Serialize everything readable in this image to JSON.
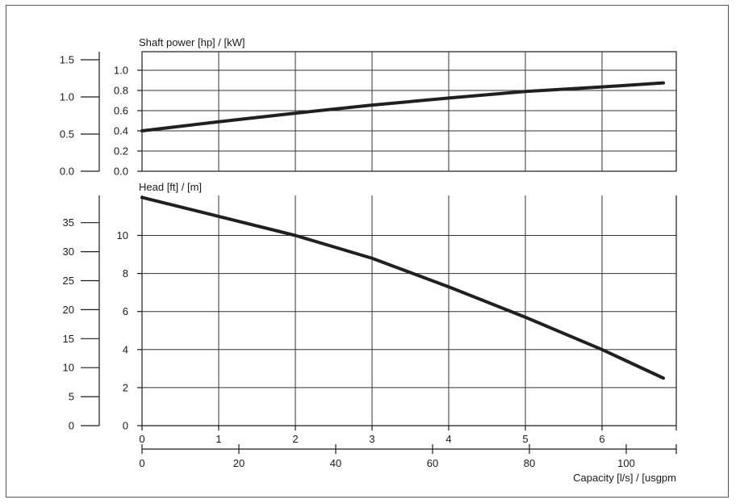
{
  "chart_data": [
    {
      "type": "line",
      "title": "Shaft power [hp] / [kW]",
      "x_primary": {
        "unit_label": "l/s",
        "range": [
          0,
          7
        ]
      },
      "y_primary": {
        "unit": "kW",
        "ticks": [
          "0.0",
          "0.2",
          "0.4",
          "0.6",
          "0.8",
          "1.0"
        ],
        "range": [
          0,
          1.1
        ]
      },
      "y_secondary": {
        "unit": "hp",
        "ticks": [
          "0.0",
          "0.5",
          "1.0",
          "1.5"
        ],
        "range": [
          0,
          1.5
        ]
      },
      "grid": true,
      "series": [
        {
          "x": [
            0,
            1,
            2,
            3,
            4,
            5,
            6,
            6.8
          ],
          "y": [
            0.4,
            0.49,
            0.575,
            0.655,
            0.725,
            0.79,
            0.835,
            0.875
          ]
        }
      ]
    },
    {
      "type": "line",
      "title": "Head [ft] / [m]",
      "x_primary": {
        "unit": "l/s",
        "ticks": [
          "0",
          "1",
          "2",
          "3",
          "4",
          "5",
          "6"
        ],
        "range": [
          0,
          7
        ]
      },
      "x_secondary": {
        "unit": "usgpm",
        "ticks": [
          "0",
          "20",
          "40",
          "60",
          "80",
          "100"
        ]
      },
      "xlabel": "Capacity [l/s] / [usgpm",
      "y_primary": {
        "unit": "m",
        "ticks": [
          "0",
          "2",
          "4",
          "6",
          "8",
          "10"
        ],
        "range": [
          0,
          12
        ]
      },
      "y_secondary": {
        "unit": "ft",
        "ticks": [
          "0",
          "5",
          "10",
          "15",
          "20",
          "25",
          "30",
          "35"
        ],
        "range": [
          0,
          39.4
        ]
      },
      "grid": true,
      "series": [
        {
          "x": [
            0,
            1,
            2,
            3,
            4,
            5,
            6,
            6.8
          ],
          "y": [
            12,
            11,
            10,
            8.8,
            7.3,
            5.7,
            4,
            2.5
          ]
        }
      ]
    }
  ]
}
